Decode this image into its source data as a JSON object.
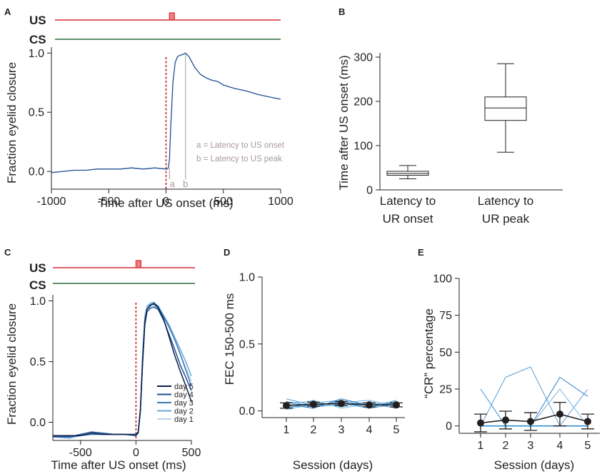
{
  "chart_data": [
    {
      "panel": "A",
      "type": "line",
      "stim_labels": {
        "us": "US",
        "cs": "CS"
      },
      "colors": {
        "us": "#d62f36",
        "us_fill": "#f27e7e",
        "cs": "#2d6a3f",
        "trace": "#1f4e96",
        "cue": "#b81e1e",
        "annot": "#a89a9a"
      },
      "xlabel": "Time after US onset (ms)",
      "ylabel": "Fraction eyelid closure",
      "xlim": [
        -1000,
        1000
      ],
      "ylim": [
        -0.15,
        1.05
      ],
      "xticks": [
        -1000,
        -500,
        0,
        500,
        1000
      ],
      "xtick_labels": [
        "-1000",
        "-500",
        "0",
        "500",
        "1000"
      ],
      "yticks": [
        0.0,
        0.5,
        1.0
      ],
      "ytick_labels": [
        "0.0",
        "0.5",
        "1.0"
      ],
      "markers": {
        "a_time": 30,
        "b_time": 170,
        "a_label": "a",
        "b_label": "b"
      },
      "annotations": [
        "a = Latency to US onset",
        "b = Latency to US peak"
      ],
      "x": [
        -1000,
        -900,
        -800,
        -700,
        -600,
        -500,
        -400,
        -300,
        -200,
        -100,
        0,
        10,
        20,
        30,
        40,
        60,
        80,
        100,
        120,
        150,
        170,
        200,
        250,
        300,
        350,
        400,
        450,
        500,
        600,
        700,
        800,
        900,
        1000
      ],
      "y": [
        -0.01,
        0.0,
        0.01,
        0.01,
        0.02,
        0.02,
        0.02,
        0.03,
        0.02,
        0.03,
        0.02,
        0.02,
        0.03,
        0.1,
        0.35,
        0.75,
        0.92,
        0.97,
        0.98,
        0.99,
        1.0,
        0.97,
        0.88,
        0.82,
        0.79,
        0.77,
        0.76,
        0.73,
        0.7,
        0.68,
        0.65,
        0.63,
        0.61
      ]
    },
    {
      "panel": "B",
      "type": "box",
      "ylabel": "Time after US onset (ms)",
      "ylim": [
        0,
        300
      ],
      "yticks": [
        0,
        100,
        200,
        300
      ],
      "ytick_labels": [
        "0",
        "100",
        "200",
        "300"
      ],
      "categories": [
        "Latency to UR onset",
        "Latency to UR peak"
      ],
      "category_lines": [
        [
          "Latency to",
          "UR onset"
        ],
        [
          "Latency to",
          "UR peak"
        ]
      ],
      "boxes": [
        {
          "min": 25,
          "q1": 33,
          "median": 37,
          "q3": 42,
          "max": 55
        },
        {
          "min": 85,
          "q1": 157,
          "median": 185,
          "q3": 210,
          "max": 285
        }
      ]
    },
    {
      "panel": "C",
      "type": "line",
      "stim_labels": {
        "us": "US",
        "cs": "CS"
      },
      "xlabel": "Time after US onset (ms)",
      "ylabel": "Fraction eyelid closure",
      "xlim": [
        -750,
        500
      ],
      "ylim": [
        -0.15,
        1.05
      ],
      "xticks": [
        -500,
        0,
        500
      ],
      "xtick_labels": [
        "-500",
        "0",
        "500"
      ],
      "yticks": [
        0.0,
        0.5,
        1.0
      ],
      "ytick_labels": [
        "0.0",
        "0.5",
        "1.0"
      ],
      "x": [
        -750,
        -600,
        -500,
        -400,
        -300,
        -200,
        -100,
        0,
        20,
        40,
        60,
        80,
        100,
        130,
        160,
        200,
        250,
        300,
        350,
        400,
        450,
        500
      ],
      "series": [
        {
          "name": "day 5",
          "color": "#0c1f45",
          "y": [
            -0.11,
            -0.11,
            -0.11,
            -0.09,
            -0.1,
            -0.1,
            -0.1,
            -0.1,
            -0.08,
            0.1,
            0.5,
            0.82,
            0.93,
            0.96,
            0.98,
            0.95,
            0.85,
            0.7,
            0.55,
            0.42,
            0.3,
            0.17
          ]
        },
        {
          "name": "day 4",
          "color": "#1f4e96",
          "y": [
            -0.12,
            -0.12,
            -0.1,
            -0.08,
            -0.09,
            -0.1,
            -0.1,
            -0.11,
            -0.09,
            0.09,
            0.48,
            0.8,
            0.91,
            0.94,
            0.95,
            0.93,
            0.84,
            0.72,
            0.6,
            0.47,
            0.37,
            0.26
          ]
        },
        {
          "name": "day 3",
          "color": "#3a7ab8",
          "y": [
            -0.12,
            -0.12,
            -0.11,
            -0.1,
            -0.1,
            -0.1,
            -0.1,
            -0.11,
            -0.09,
            0.11,
            0.52,
            0.84,
            0.93,
            0.97,
            0.97,
            0.94,
            0.87,
            0.78,
            0.68,
            0.56,
            0.43,
            0.3
          ]
        },
        {
          "name": "day 2",
          "color": "#6ba9d6",
          "y": [
            -0.12,
            -0.13,
            -0.11,
            -0.1,
            -0.1,
            -0.1,
            -0.1,
            -0.11,
            -0.09,
            0.1,
            0.55,
            0.86,
            0.95,
            0.98,
            0.99,
            0.96,
            0.88,
            0.8,
            0.7,
            0.6,
            0.5,
            0.38
          ]
        },
        {
          "name": "day 1",
          "color": "#b9d3ea",
          "y": [
            -0.12,
            -0.12,
            -0.1,
            -0.1,
            -0.09,
            -0.1,
            -0.1,
            -0.1,
            -0.08,
            0.12,
            0.56,
            0.88,
            0.96,
            0.98,
            0.97,
            0.95,
            0.87,
            0.78,
            0.68,
            0.57,
            0.45,
            0.34
          ]
        }
      ]
    },
    {
      "panel": "D",
      "type": "line",
      "xlabel": "Session (days)",
      "ylabel": "FEC 150-500 ms",
      "ylim": [
        -0.05,
        1.0
      ],
      "yticks": [
        0.0,
        0.5,
        1.0
      ],
      "ytick_labels": [
        "0.0",
        "0.5",
        "1.0"
      ],
      "categories": [
        "1",
        "2",
        "3",
        "4",
        "5"
      ],
      "mean": [
        0.04,
        0.05,
        0.055,
        0.045,
        0.045
      ],
      "err": [
        0.02,
        0.015,
        0.015,
        0.015,
        0.015
      ],
      "individuals": [
        [
          0.02,
          0.06,
          0.08,
          0.03,
          0.06
        ],
        [
          0.07,
          0.03,
          0.05,
          0.06,
          0.02
        ],
        [
          0.04,
          0.08,
          0.02,
          0.05,
          0.07
        ],
        [
          0.09,
          0.04,
          0.07,
          0.02,
          0.05
        ],
        [
          0.01,
          0.05,
          0.06,
          0.08,
          0.03
        ],
        [
          0.05,
          0.02,
          0.09,
          0.04,
          0.06
        ],
        [
          0.06,
          0.07,
          0.03,
          0.06,
          0.04
        ],
        [
          0.03,
          0.04,
          0.06,
          0.02,
          0.08
        ]
      ]
    },
    {
      "panel": "E",
      "type": "line",
      "xlabel": "Session (days)",
      "ylabel": "“CR” percentage",
      "ylim": [
        -5,
        100
      ],
      "yticks": [
        0,
        25,
        50,
        75,
        100
      ],
      "ytick_labels": [
        "0",
        "25",
        "50",
        "75",
        "100"
      ],
      "categories": [
        "1",
        "2",
        "3",
        "4",
        "5"
      ],
      "mean": [
        2,
        4,
        3,
        8,
        3
      ],
      "err": [
        6,
        6,
        6,
        8,
        5
      ],
      "individuals": [
        [
          25,
          0,
          0,
          0,
          0
        ],
        [
          0,
          33,
          40,
          0,
          25
        ],
        [
          0,
          0,
          0,
          33,
          20
        ],
        [
          0,
          0,
          0,
          25,
          0
        ],
        [
          0,
          0,
          0,
          0,
          0
        ],
        [
          0,
          0,
          0,
          0,
          0
        ]
      ]
    }
  ]
}
